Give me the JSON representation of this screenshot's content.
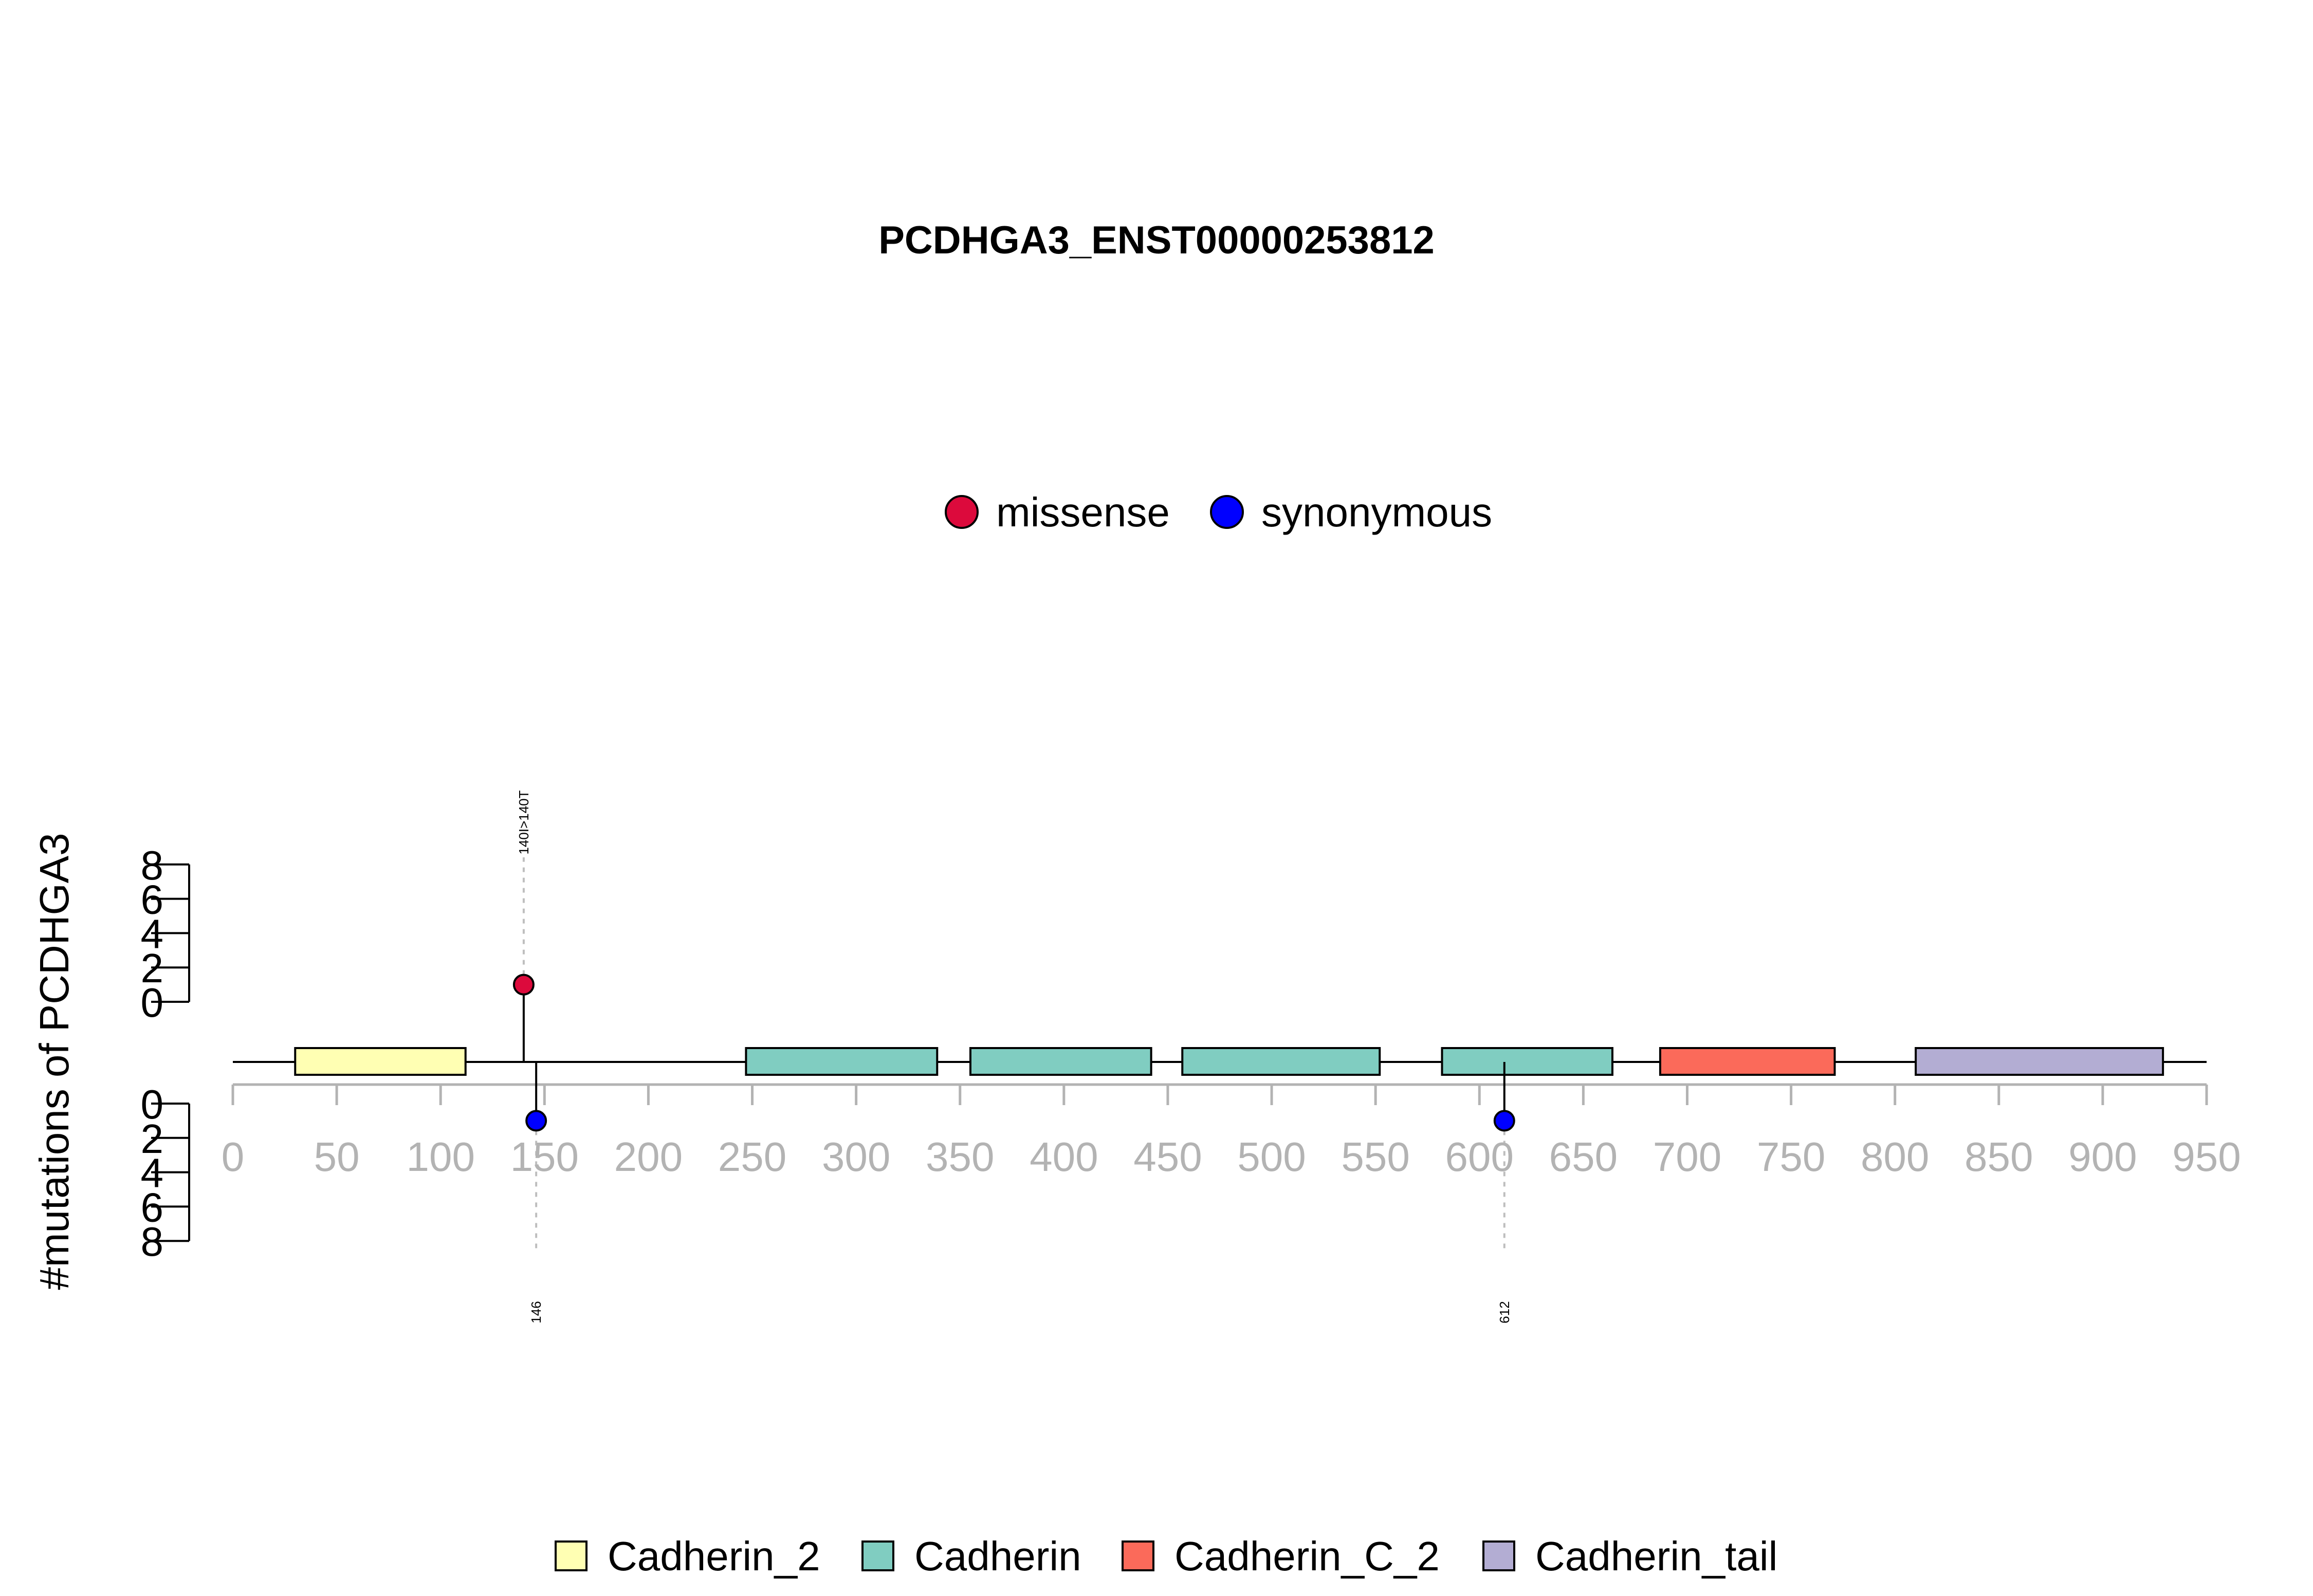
{
  "chart_data": {
    "type": "lollipop",
    "title": "PCDHGA3_ENST00000253812",
    "ylabel": "#mutations of PCDHGA3",
    "protein_length": 950,
    "xlim": [
      0,
      950
    ],
    "xticks": [
      0,
      50,
      100,
      150,
      200,
      250,
      300,
      350,
      400,
      450,
      500,
      550,
      600,
      650,
      700,
      750,
      800,
      850,
      900,
      950
    ],
    "ylim_top": [
      0,
      8
    ],
    "ylim_bottom": [
      0,
      8
    ],
    "yticks": [
      0,
      2,
      4,
      6,
      8
    ],
    "domains": [
      {
        "name": "Cadherin_2",
        "start": 30,
        "end": 112,
        "color": "#FFFFB3"
      },
      {
        "name": "Cadherin",
        "start": 247,
        "end": 339,
        "color": "#80CDC1"
      },
      {
        "name": "Cadherin",
        "start": 355,
        "end": 442,
        "color": "#80CDC1"
      },
      {
        "name": "Cadherin",
        "start": 457,
        "end": 552,
        "color": "#80CDC1"
      },
      {
        "name": "Cadherin",
        "start": 582,
        "end": 664,
        "color": "#80CDC1"
      },
      {
        "name": "Cadherin_C_2",
        "start": 687,
        "end": 771,
        "color": "#FB6A5A"
      },
      {
        "name": "Cadherin_tail",
        "start": 810,
        "end": 929,
        "color": "#B3ADD3"
      }
    ],
    "mutations": [
      {
        "position": 140,
        "count": 1,
        "type": "missense",
        "side": "top",
        "label": "140I>140T"
      },
      {
        "position": 146,
        "count": 1,
        "type": "synonymous",
        "side": "bottom",
        "label": "146"
      },
      {
        "position": 612,
        "count": 1,
        "type": "synonymous",
        "side": "bottom",
        "label": "612"
      }
    ],
    "mutation_legend": [
      {
        "name": "missense",
        "color": "#DC0A3C"
      },
      {
        "name": "synonymous",
        "color": "#0000FF"
      }
    ],
    "domain_legend": [
      {
        "name": "Cadherin_2",
        "color": "#FFFFB3"
      },
      {
        "name": "Cadherin",
        "color": "#80CDC1"
      },
      {
        "name": "Cadherin_C_2",
        "color": "#FB6A5A"
      },
      {
        "name": "Cadherin_tail",
        "color": "#B3ADD3"
      }
    ],
    "axis_color": "#B3B3B3",
    "guide_color": "#BEBEBE"
  }
}
